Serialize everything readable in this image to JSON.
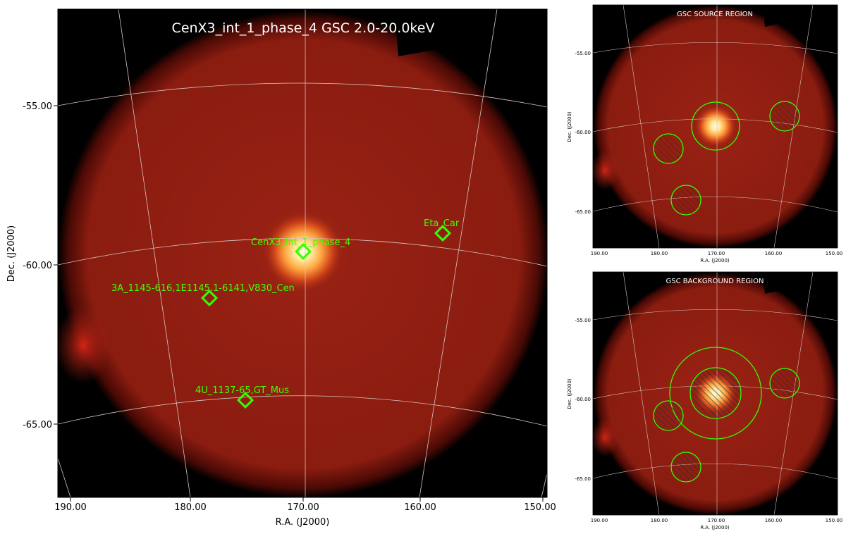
{
  "main_panel": {
    "title": "CenX3_int_1_phase_4 GSC 2.0-20.0keV",
    "xlabel": "R.A. (J2000)",
    "ylabel": "Dec. (J2000)",
    "x_ticks": [
      "190.00",
      "180.00",
      "170.00",
      "160.00",
      "150.00"
    ],
    "y_ticks": [
      "-55.00",
      "-60.00",
      "-65.00"
    ],
    "sources": [
      {
        "label": "CenX3_int_1_phase_4"
      },
      {
        "label": "Eta_Car"
      },
      {
        "label": "3A_1145-616,1E1145.1-6141,V830_Cen"
      },
      {
        "label": "4U_1137-65,GT_Mus"
      }
    ]
  },
  "source_panel": {
    "title": "GSC SOURCE REGION",
    "xlabel": "R.A. (J2000)",
    "ylabel": "Dec. (J2000)",
    "x_ticks": [
      "190.00",
      "180.00",
      "170.00",
      "160.00",
      "150.00"
    ],
    "y_ticks": [
      "-55.00",
      "-60.00",
      "-65.00"
    ]
  },
  "background_panel": {
    "title": "GSC BACKGROUND REGION",
    "xlabel": "R.A. (J2000)",
    "ylabel": "Dec. (J2000)",
    "x_ticks": [
      "190.00",
      "180.00",
      "170.00",
      "160.00",
      "150.00"
    ],
    "y_ticks": [
      "-55.00",
      "-60.00",
      "-65.00"
    ]
  },
  "colors": {
    "field": "#8a1a0e",
    "source_glow": "#fff6c8",
    "region": "#33ff00",
    "label": "#44ff00",
    "grid": "#d8c4c0"
  }
}
